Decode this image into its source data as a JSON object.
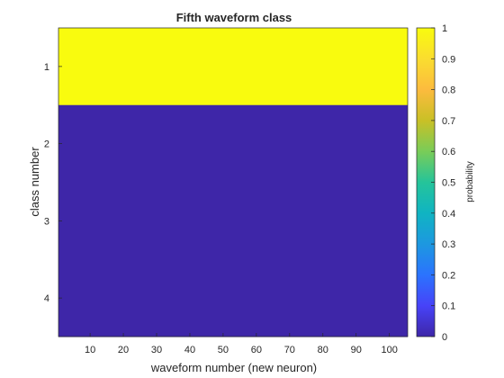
{
  "chart_data": {
    "type": "heatmap",
    "title": "Fifth waveform class",
    "xlabel": "waveform number (new neuron)",
    "ylabel": "class number",
    "x_range": [
      0.5,
      105.5
    ],
    "x_ticks": [
      10,
      20,
      30,
      40,
      50,
      60,
      70,
      80,
      90,
      100
    ],
    "y_categories": [
      1,
      2,
      3,
      4
    ],
    "rows": [
      {
        "class": 1,
        "probability": 1.0,
        "color": "#f9fb0e"
      },
      {
        "class": 2,
        "probability": 0.0,
        "color": "#3e26a8"
      },
      {
        "class": 3,
        "probability": 0.0,
        "color": "#3e26a8"
      },
      {
        "class": 4,
        "probability": 0.0,
        "color": "#3e26a8"
      }
    ],
    "colorbar": {
      "label": "probability",
      "range": [
        0,
        1
      ],
      "ticks": [
        "0",
        "0.1",
        "0.2",
        "0.3",
        "0.4",
        "0.5",
        "0.6",
        "0.7",
        "0.8",
        "0.9",
        "1"
      ],
      "colormap": "parula",
      "colors": [
        "#3e26a8",
        "#4743f8",
        "#2b73fe",
        "#1d98e0",
        "#10b4c2",
        "#25c49a",
        "#79cc58",
        "#c9c026",
        "#fcbb3e",
        "#fadd2f",
        "#f9fb0e"
      ]
    },
    "grid": false
  }
}
